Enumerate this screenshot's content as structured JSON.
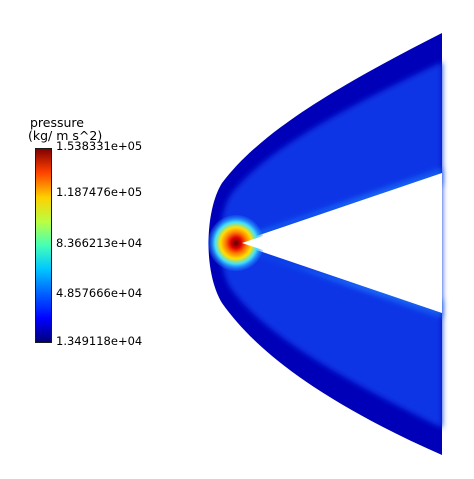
{
  "legend": {
    "title_line1": "pressure",
    "title_line2": "(kg/ m s^2)",
    "ticks": [
      "1.538331e+05",
      "1.187476e+05",
      "8.366213e+04",
      "4.857666e+04",
      "1.349118e+04"
    ],
    "colormap": "rainbow (dark blue to dark red)"
  },
  "view": {
    "background": "#ffffff",
    "field_low_color": "#0000b4",
    "field_high_color": "#d21a00"
  }
}
